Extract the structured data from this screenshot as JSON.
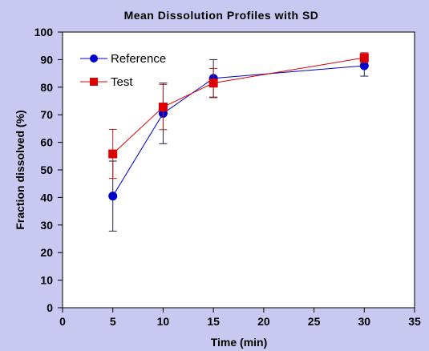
{
  "chart_data": {
    "type": "line",
    "title": "Mean Dissolution Profiles with SD",
    "xlabel": "Time (min)",
    "ylabel": "Fraction dissolved (%)",
    "xlim": [
      0,
      35
    ],
    "ylim": [
      0,
      100
    ],
    "xticks": [
      0,
      5,
      10,
      15,
      20,
      25,
      30,
      35
    ],
    "yticks": [
      0,
      10,
      20,
      30,
      40,
      50,
      60,
      70,
      80,
      90,
      100
    ],
    "grid": false,
    "legend_position": "top-left",
    "series": [
      {
        "name": "Reference",
        "color": "#0000cc",
        "marker": "circle",
        "x": [
          5,
          10,
          15,
          30
        ],
        "y": [
          40.5,
          70.5,
          83.2,
          87.8
        ],
        "sd": [
          12.7,
          11,
          6.8,
          3.8
        ]
      },
      {
        "name": "Test",
        "color": "#dd0000",
        "marker": "square",
        "x": [
          5,
          10,
          15,
          30
        ],
        "y": [
          55.8,
          72.8,
          81.5,
          90.7
        ],
        "sd": [
          8.9,
          8.2,
          5.3,
          1.8
        ]
      }
    ]
  }
}
